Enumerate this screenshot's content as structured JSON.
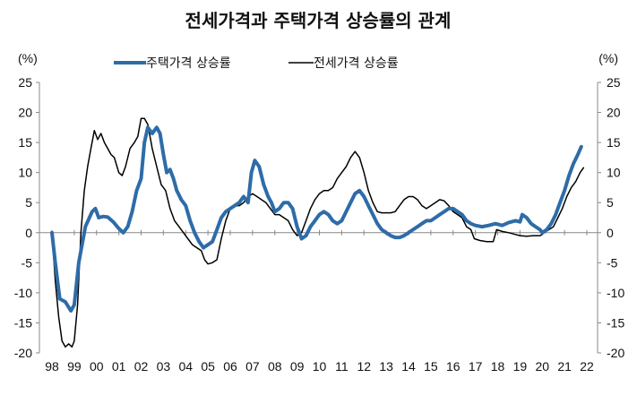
{
  "chart_data": {
    "type": "line",
    "title": "전세가격과 주택가격 상승률의 관계",
    "y_unit_left": "(%)",
    "y_unit_right": "(%)",
    "ylim": [
      -20,
      25
    ],
    "yticks": [
      25,
      20,
      15,
      10,
      5,
      0,
      -5,
      -10,
      -15,
      -20
    ],
    "xlim": [
      1998,
      2022
    ],
    "xticks": [
      "98",
      "99",
      "00",
      "01",
      "02",
      "03",
      "04",
      "05",
      "06",
      "07",
      "08",
      "09",
      "10",
      "11",
      "12",
      "13",
      "14",
      "15",
      "16",
      "17",
      "18",
      "19",
      "20",
      "21",
      "22"
    ],
    "colors": {
      "housing": "#2e6ca8",
      "jeonse": "#000000"
    },
    "series": [
      {
        "key": "housing",
        "name": "주택가격 상승률",
        "points": [
          [
            1998.0,
            0
          ],
          [
            1998.15,
            -5
          ],
          [
            1998.35,
            -11
          ],
          [
            1998.6,
            -11.5
          ],
          [
            1998.85,
            -13
          ],
          [
            1999.0,
            -12
          ],
          [
            1999.2,
            -5
          ],
          [
            1999.5,
            1
          ],
          [
            1999.8,
            3.5
          ],
          [
            1999.95,
            4
          ],
          [
            2000.1,
            2.5
          ],
          [
            2000.3,
            2.7
          ],
          [
            2000.5,
            2.6
          ],
          [
            2000.75,
            1.8
          ],
          [
            2001.0,
            0.7
          ],
          [
            2001.2,
            0
          ],
          [
            2001.4,
            1
          ],
          [
            2001.6,
            3.5
          ],
          [
            2001.8,
            7
          ],
          [
            2002.0,
            9
          ],
          [
            2002.15,
            15
          ],
          [
            2002.3,
            17.5
          ],
          [
            2002.5,
            16.5
          ],
          [
            2002.7,
            17.5
          ],
          [
            2002.85,
            16.5
          ],
          [
            2003.0,
            13
          ],
          [
            2003.15,
            10
          ],
          [
            2003.3,
            10.5
          ],
          [
            2003.45,
            9
          ],
          [
            2003.6,
            7
          ],
          [
            2003.8,
            5.5
          ],
          [
            2004.0,
            4.5
          ],
          [
            2004.2,
            2
          ],
          [
            2004.4,
            0
          ],
          [
            2004.6,
            -1.5
          ],
          [
            2004.8,
            -2.5
          ],
          [
            2005.0,
            -2
          ],
          [
            2005.2,
            -1.5
          ],
          [
            2005.4,
            0.5
          ],
          [
            2005.6,
            2.5
          ],
          [
            2005.8,
            3.5
          ],
          [
            2006.0,
            4
          ],
          [
            2006.2,
            4.5
          ],
          [
            2006.4,
            5
          ],
          [
            2006.6,
            6
          ],
          [
            2006.8,
            5
          ],
          [
            2006.95,
            10
          ],
          [
            2007.1,
            12
          ],
          [
            2007.3,
            11
          ],
          [
            2007.5,
            8
          ],
          [
            2007.7,
            6
          ],
          [
            2007.85,
            5
          ],
          [
            2008.0,
            3.5
          ],
          [
            2008.2,
            4
          ],
          [
            2008.4,
            5
          ],
          [
            2008.6,
            5
          ],
          [
            2008.8,
            4
          ],
          [
            2009.0,
            1
          ],
          [
            2009.2,
            -1
          ],
          [
            2009.4,
            -0.5
          ],
          [
            2009.6,
            1
          ],
          [
            2009.8,
            2
          ],
          [
            2010.0,
            3
          ],
          [
            2010.2,
            3.5
          ],
          [
            2010.4,
            3
          ],
          [
            2010.6,
            2
          ],
          [
            2010.8,
            1.5
          ],
          [
            2011.0,
            2
          ],
          [
            2011.2,
            3.5
          ],
          [
            2011.4,
            5
          ],
          [
            2011.6,
            6.5
          ],
          [
            2011.8,
            7
          ],
          [
            2012.0,
            6
          ],
          [
            2012.2,
            4.5
          ],
          [
            2012.4,
            3
          ],
          [
            2012.6,
            1.5
          ],
          [
            2012.8,
            0.5
          ],
          [
            2013.0,
            0
          ],
          [
            2013.2,
            -0.5
          ],
          [
            2013.4,
            -0.8
          ],
          [
            2013.6,
            -0.8
          ],
          [
            2013.8,
            -0.5
          ],
          [
            2014.0,
            0
          ],
          [
            2014.2,
            0.5
          ],
          [
            2014.4,
            1
          ],
          [
            2014.6,
            1.5
          ],
          [
            2014.8,
            2
          ],
          [
            2015.0,
            2
          ],
          [
            2015.2,
            2.5
          ],
          [
            2015.4,
            3
          ],
          [
            2015.6,
            3.5
          ],
          [
            2015.8,
            4
          ],
          [
            2016.0,
            4
          ],
          [
            2016.2,
            3.5
          ],
          [
            2016.4,
            3
          ],
          [
            2016.6,
            2
          ],
          [
            2016.8,
            1.5
          ],
          [
            2017.0,
            1.2
          ],
          [
            2017.3,
            1
          ],
          [
            2017.6,
            1.2
          ],
          [
            2017.9,
            1.5
          ],
          [
            2018.2,
            1.2
          ],
          [
            2018.5,
            1.7
          ],
          [
            2018.8,
            2
          ],
          [
            2019.0,
            1.8
          ],
          [
            2019.1,
            3
          ],
          [
            2019.3,
            2.5
          ],
          [
            2019.5,
            1.5
          ],
          [
            2019.7,
            1
          ],
          [
            2019.9,
            0.5
          ],
          [
            2020.0,
            0
          ],
          [
            2020.2,
            0.5
          ],
          [
            2020.4,
            1.5
          ],
          [
            2020.6,
            3
          ],
          [
            2020.8,
            5
          ],
          [
            2021.0,
            7
          ],
          [
            2021.2,
            9.5
          ],
          [
            2021.4,
            11.5
          ],
          [
            2021.6,
            13
          ],
          [
            2021.75,
            14.3
          ]
        ]
      },
      {
        "key": "jeonse",
        "name": "전세가격 상승률",
        "points": [
          [
            1998.0,
            0
          ],
          [
            1998.15,
            -8
          ],
          [
            1998.3,
            -14
          ],
          [
            1998.45,
            -18
          ],
          [
            1998.6,
            -19
          ],
          [
            1998.75,
            -18.5
          ],
          [
            1998.9,
            -19
          ],
          [
            1999.0,
            -18
          ],
          [
            1999.15,
            -12
          ],
          [
            1999.3,
            0
          ],
          [
            1999.45,
            7
          ],
          [
            1999.6,
            11
          ],
          [
            1999.75,
            14
          ],
          [
            1999.9,
            17
          ],
          [
            2000.05,
            15.5
          ],
          [
            2000.2,
            16.5
          ],
          [
            2000.35,
            15
          ],
          [
            2000.5,
            14
          ],
          [
            2000.65,
            13
          ],
          [
            2000.8,
            12.5
          ],
          [
            2001.0,
            10
          ],
          [
            2001.15,
            9.5
          ],
          [
            2001.3,
            11
          ],
          [
            2001.5,
            14
          ],
          [
            2001.7,
            15
          ],
          [
            2001.85,
            16
          ],
          [
            2002.0,
            19
          ],
          [
            2002.15,
            19
          ],
          [
            2002.3,
            18
          ],
          [
            2002.5,
            14
          ],
          [
            2002.7,
            11
          ],
          [
            2002.9,
            8
          ],
          [
            2003.1,
            7
          ],
          [
            2003.3,
            4
          ],
          [
            2003.5,
            2
          ],
          [
            2003.7,
            1
          ],
          [
            2003.9,
            0
          ],
          [
            2004.1,
            -1
          ],
          [
            2004.3,
            -2
          ],
          [
            2004.5,
            -2.5
          ],
          [
            2004.7,
            -3
          ],
          [
            2004.85,
            -4.5
          ],
          [
            2005.0,
            -5.2
          ],
          [
            2005.2,
            -5
          ],
          [
            2005.4,
            -4.5
          ],
          [
            2005.6,
            -1
          ],
          [
            2005.8,
            2
          ],
          [
            2006.0,
            4
          ],
          [
            2006.2,
            4.5
          ],
          [
            2006.4,
            4.5
          ],
          [
            2006.6,
            5
          ],
          [
            2006.8,
            6
          ],
          [
            2007.0,
            6.5
          ],
          [
            2007.2,
            6
          ],
          [
            2007.4,
            5.5
          ],
          [
            2007.6,
            5
          ],
          [
            2007.8,
            4
          ],
          [
            2008.0,
            3
          ],
          [
            2008.2,
            3
          ],
          [
            2008.4,
            2.5
          ],
          [
            2008.6,
            2
          ],
          [
            2008.8,
            0.5
          ],
          [
            2009.0,
            -0.5
          ],
          [
            2009.2,
            0
          ],
          [
            2009.4,
            2
          ],
          [
            2009.6,
            4
          ],
          [
            2009.8,
            5.5
          ],
          [
            2010.0,
            6.5
          ],
          [
            2010.2,
            7
          ],
          [
            2010.4,
            7
          ],
          [
            2010.6,
            7.5
          ],
          [
            2010.8,
            9
          ],
          [
            2011.0,
            10
          ],
          [
            2011.2,
            11
          ],
          [
            2011.4,
            12.5
          ],
          [
            2011.6,
            13.5
          ],
          [
            2011.8,
            12.5
          ],
          [
            2012.0,
            10
          ],
          [
            2012.2,
            7
          ],
          [
            2012.4,
            5
          ],
          [
            2012.6,
            3.5
          ],
          [
            2012.8,
            3.3
          ],
          [
            2013.0,
            3.3
          ],
          [
            2013.2,
            3.3
          ],
          [
            2013.4,
            3.5
          ],
          [
            2013.6,
            4.5
          ],
          [
            2013.8,
            5.5
          ],
          [
            2014.0,
            6
          ],
          [
            2014.2,
            6
          ],
          [
            2014.4,
            5.5
          ],
          [
            2014.6,
            4.5
          ],
          [
            2014.8,
            4
          ],
          [
            2015.0,
            4.5
          ],
          [
            2015.2,
            5
          ],
          [
            2015.4,
            5.5
          ],
          [
            2015.6,
            5.3
          ],
          [
            2015.8,
            4.5
          ],
          [
            2016.0,
            3.5
          ],
          [
            2016.2,
            3
          ],
          [
            2016.4,
            2.5
          ],
          [
            2016.6,
            1
          ],
          [
            2016.8,
            0.5
          ],
          [
            2016.95,
            -1
          ],
          [
            2017.2,
            -1.3
          ],
          [
            2017.5,
            -1.5
          ],
          [
            2017.8,
            -1.5
          ],
          [
            2017.95,
            0.5
          ],
          [
            2018.2,
            0.2
          ],
          [
            2018.5,
            0
          ],
          [
            2018.8,
            -0.3
          ],
          [
            2019.0,
            -0.5
          ],
          [
            2019.3,
            -0.6
          ],
          [
            2019.6,
            -0.5
          ],
          [
            2019.9,
            -0.5
          ],
          [
            2020.1,
            0
          ],
          [
            2020.3,
            0.5
          ],
          [
            2020.5,
            1
          ],
          [
            2020.7,
            2.5
          ],
          [
            2020.9,
            4
          ],
          [
            2021.1,
            6
          ],
          [
            2021.3,
            7.5
          ],
          [
            2021.5,
            8.5
          ],
          [
            2021.7,
            10
          ],
          [
            2021.85,
            10.8
          ]
        ]
      }
    ],
    "legend_position": "top"
  }
}
